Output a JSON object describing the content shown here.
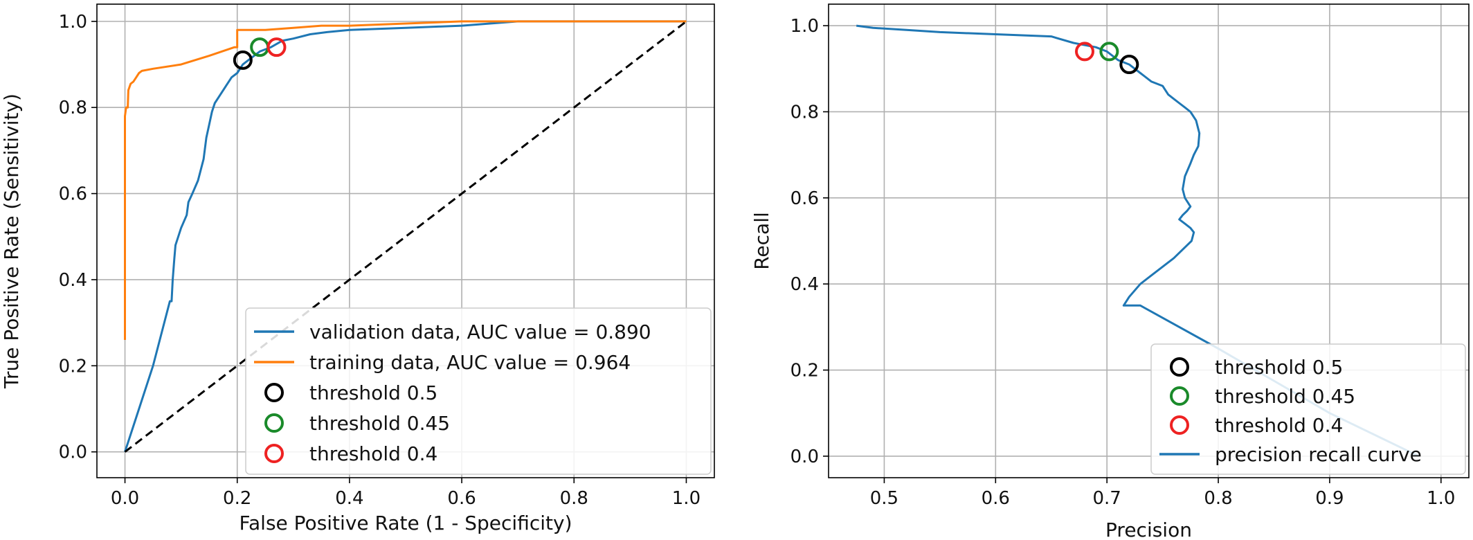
{
  "chart_data": [
    {
      "type": "line",
      "xlabel": "False Positive Rate (1 - Specificity)",
      "ylabel": "True Positive Rate (Sensitivity)",
      "xlim": [
        -0.05,
        1.05
      ],
      "ylim": [
        -0.06,
        1.04
      ],
      "xticks": [
        "0.0",
        "0.2",
        "0.4",
        "0.6",
        "0.8",
        "1.0"
      ],
      "yticks": [
        "0.0",
        "0.2",
        "0.4",
        "0.6",
        "0.8",
        "1.0"
      ],
      "grid": true,
      "legend_position": "lower-right",
      "series": [
        {
          "name": "validation data, AUC value = 0.890",
          "color": "#1f77b4",
          "x": [
            0,
            0.02,
            0.05,
            0.08,
            0.083,
            0.085,
            0.088,
            0.09,
            0.1,
            0.11,
            0.113,
            0.12,
            0.13,
            0.14,
            0.145,
            0.15,
            0.155,
            0.16,
            0.17,
            0.18,
            0.19,
            0.2,
            0.21,
            0.22,
            0.24,
            0.26,
            0.28,
            0.3,
            0.33,
            0.36,
            0.4,
            0.5,
            0.6,
            0.65,
            0.7,
            0.8,
            0.9,
            1.0
          ],
          "y": [
            0,
            0.08,
            0.2,
            0.35,
            0.35,
            0.4,
            0.45,
            0.48,
            0.52,
            0.55,
            0.58,
            0.6,
            0.63,
            0.68,
            0.73,
            0.76,
            0.79,
            0.81,
            0.83,
            0.85,
            0.87,
            0.88,
            0.9,
            0.91,
            0.93,
            0.94,
            0.955,
            0.96,
            0.97,
            0.975,
            0.98,
            0.985,
            0.99,
            0.995,
            1.0,
            1.0,
            1.0,
            1.0
          ]
        },
        {
          "name": "training data, AUC value = 0.964",
          "color": "#ff7f0e",
          "x": [
            0,
            0,
            0.002,
            0.005,
            0.006,
            0.01,
            0.015,
            0.02,
            0.025,
            0.03,
            0.05,
            0.1,
            0.15,
            0.195,
            0.2,
            0.2,
            0.25,
            0.3,
            0.35,
            0.4,
            0.5,
            0.6,
            0.7,
            1.0
          ],
          "y": [
            0.26,
            0.78,
            0.8,
            0.8,
            0.84,
            0.855,
            0.86,
            0.87,
            0.88,
            0.885,
            0.89,
            0.9,
            0.92,
            0.94,
            0.94,
            0.98,
            0.98,
            0.985,
            0.99,
            0.99,
            0.995,
            1.0,
            1.0,
            1.0
          ]
        },
        {
          "name": "",
          "color": "#000000",
          "style": "dashed",
          "x": [
            0,
            1
          ],
          "y": [
            0,
            1
          ]
        }
      ],
      "markers": [
        {
          "name": "threshold 0.5",
          "color": "#000000",
          "x": 0.21,
          "y": 0.91
        },
        {
          "name": "threshold 0.45",
          "color": "#1a8a2a",
          "x": 0.24,
          "y": 0.94
        },
        {
          "name": "threshold 0.4",
          "color": "#ee2222",
          "x": 0.27,
          "y": 0.94
        }
      ]
    },
    {
      "type": "line",
      "xlabel": "Precision",
      "ylabel": "Recall",
      "xlim": [
        0.45,
        1.025
      ],
      "ylim": [
        -0.05,
        1.05
      ],
      "xticks": [
        "0.5",
        "0.6",
        "0.7",
        "0.8",
        "0.9",
        "1.0"
      ],
      "yticks": [
        "0.0",
        "0.2",
        "0.4",
        "0.6",
        "0.8",
        "1.0"
      ],
      "grid": true,
      "legend_position": "lower-right",
      "series": [
        {
          "name": "precision recall curve",
          "color": "#1f77b4",
          "x": [
            0.475,
            0.49,
            0.52,
            0.55,
            0.6,
            0.65,
            0.67,
            0.69,
            0.7,
            0.71,
            0.72,
            0.73,
            0.74,
            0.75,
            0.755,
            0.76,
            0.765,
            0.77,
            0.775,
            0.78,
            0.783,
            0.782,
            0.778,
            0.775,
            0.77,
            0.768,
            0.77,
            0.775,
            0.772,
            0.768,
            0.765,
            0.77,
            0.775,
            0.778,
            0.776,
            0.772,
            0.76,
            0.75,
            0.74,
            0.73,
            0.72,
            0.715,
            0.73,
            0.8,
            0.9,
            0.98
          ],
          "y": [
            1.0,
            0.995,
            0.99,
            0.985,
            0.98,
            0.975,
            0.96,
            0.95,
            0.94,
            0.92,
            0.91,
            0.89,
            0.87,
            0.86,
            0.84,
            0.83,
            0.82,
            0.81,
            0.8,
            0.78,
            0.75,
            0.72,
            0.7,
            0.68,
            0.65,
            0.62,
            0.6,
            0.58,
            0.57,
            0.56,
            0.55,
            0.54,
            0.53,
            0.52,
            0.5,
            0.49,
            0.46,
            0.44,
            0.42,
            0.4,
            0.37,
            0.35,
            0.35,
            0.25,
            0.1,
            0.0
          ]
        }
      ],
      "markers": [
        {
          "name": "threshold 0.5",
          "color": "#000000",
          "x": 0.72,
          "y": 0.91
        },
        {
          "name": "threshold 0.45",
          "color": "#1a8a2a",
          "x": 0.702,
          "y": 0.94
        },
        {
          "name": "threshold 0.4",
          "color": "#ee2222",
          "x": 0.68,
          "y": 0.94
        }
      ]
    }
  ]
}
